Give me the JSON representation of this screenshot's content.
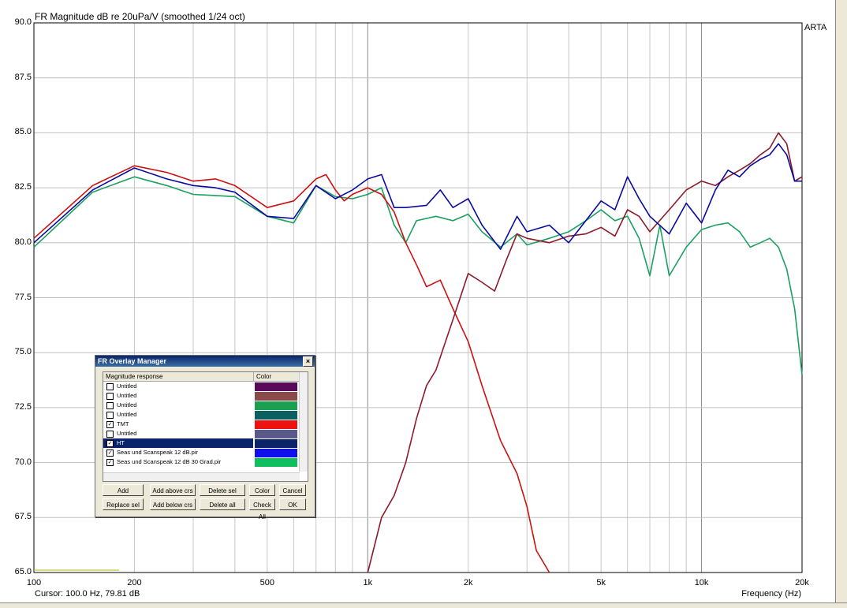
{
  "chart_data": {
    "type": "line",
    "title": "FR Magnitude dB re 20uPa/V (smoothed 1/24 oct)",
    "xlabel": "Frequency (Hz)",
    "x_scale": "log",
    "xlim": [
      100,
      20000
    ],
    "ylim": [
      65,
      90
    ],
    "y_ticks": [
      "90.0",
      "87.5",
      "85.0",
      "82.5",
      "80.0",
      "77.5",
      "75.0",
      "72.5",
      "70.0",
      "67.5",
      "65.0"
    ],
    "x_ticks": [
      {
        "v": 100,
        "label": "100"
      },
      {
        "v": 200,
        "label": "200"
      },
      {
        "v": 500,
        "label": "500"
      },
      {
        "v": 1000,
        "label": "1k"
      },
      {
        "v": 2000,
        "label": "2k"
      },
      {
        "v": 5000,
        "label": "5k"
      },
      {
        "v": 10000,
        "label": "10k"
      },
      {
        "v": 20000,
        "label": "20k"
      }
    ],
    "series": [
      {
        "color": "#1aa060",
        "points": [
          [
            100,
            79.8
          ],
          [
            150,
            82.3
          ],
          [
            200,
            83.0
          ],
          [
            250,
            82.6
          ],
          [
            300,
            82.2
          ],
          [
            400,
            82.1
          ],
          [
            500,
            81.2
          ],
          [
            600,
            80.9
          ],
          [
            700,
            82.6
          ],
          [
            800,
            82.1
          ],
          [
            900,
            82.0
          ],
          [
            1000,
            82.2
          ],
          [
            1100,
            82.5
          ],
          [
            1200,
            80.8
          ],
          [
            1300,
            80.0
          ],
          [
            1400,
            81.0
          ],
          [
            1600,
            81.2
          ],
          [
            1800,
            81.0
          ],
          [
            2000,
            81.3
          ],
          [
            2200,
            80.5
          ],
          [
            2500,
            79.8
          ],
          [
            2800,
            80.4
          ],
          [
            3000,
            79.9
          ],
          [
            3500,
            80.2
          ],
          [
            4000,
            80.5
          ],
          [
            4500,
            81.0
          ],
          [
            5000,
            81.5
          ],
          [
            5500,
            81.0
          ],
          [
            6000,
            81.2
          ],
          [
            6500,
            80.2
          ],
          [
            7000,
            78.5
          ],
          [
            7500,
            80.8
          ],
          [
            8000,
            78.5
          ],
          [
            9000,
            79.8
          ],
          [
            10000,
            80.6
          ],
          [
            11000,
            80.8
          ],
          [
            12000,
            80.9
          ],
          [
            13000,
            80.5
          ],
          [
            14000,
            79.8
          ],
          [
            15000,
            80.0
          ],
          [
            16000,
            80.2
          ],
          [
            17000,
            79.8
          ],
          [
            18000,
            78.8
          ],
          [
            19000,
            77.0
          ],
          [
            20000,
            74.0
          ]
        ]
      },
      {
        "color": "#cc1111",
        "points": [
          [
            100,
            80.2
          ],
          [
            150,
            82.6
          ],
          [
            200,
            83.5
          ],
          [
            250,
            83.2
          ],
          [
            300,
            82.8
          ],
          [
            350,
            82.9
          ],
          [
            400,
            82.6
          ],
          [
            500,
            81.6
          ],
          [
            600,
            81.9
          ],
          [
            700,
            82.9
          ],
          [
            750,
            83.1
          ],
          [
            800,
            82.4
          ],
          [
            850,
            81.9
          ],
          [
            900,
            82.2
          ],
          [
            1000,
            82.5
          ],
          [
            1100,
            82.2
          ],
          [
            1200,
            81.4
          ],
          [
            1300,
            80.0
          ],
          [
            1400,
            79.0
          ],
          [
            1500,
            78.0
          ],
          [
            1650,
            78.3
          ],
          [
            1800,
            77.0
          ],
          [
            2000,
            75.5
          ],
          [
            2200,
            73.5
          ],
          [
            2500,
            71.0
          ],
          [
            2800,
            69.5
          ],
          [
            3000,
            68.0
          ],
          [
            3200,
            66.0
          ],
          [
            3500,
            65.0
          ]
        ]
      },
      {
        "color": "#8b1a2a",
        "points": [
          [
            1000,
            65.0
          ],
          [
            1100,
            67.5
          ],
          [
            1200,
            68.5
          ],
          [
            1300,
            70.0
          ],
          [
            1400,
            72.0
          ],
          [
            1500,
            73.5
          ],
          [
            1600,
            74.2
          ],
          [
            1800,
            76.5
          ],
          [
            2000,
            78.6
          ],
          [
            2200,
            78.2
          ],
          [
            2400,
            77.8
          ],
          [
            2600,
            79.2
          ],
          [
            2800,
            80.4
          ],
          [
            3000,
            80.2
          ],
          [
            3500,
            80.0
          ],
          [
            4000,
            80.3
          ],
          [
            4500,
            80.4
          ],
          [
            5000,
            80.7
          ],
          [
            5500,
            80.3
          ],
          [
            6000,
            81.5
          ],
          [
            6500,
            81.2
          ],
          [
            7000,
            80.5
          ],
          [
            8000,
            81.5
          ],
          [
            9000,
            82.4
          ],
          [
            10000,
            82.8
          ],
          [
            11000,
            82.6
          ],
          [
            12000,
            83.0
          ],
          [
            13000,
            83.3
          ],
          [
            14000,
            83.6
          ],
          [
            15000,
            84.0
          ],
          [
            16000,
            84.3
          ],
          [
            17000,
            85.0
          ],
          [
            18000,
            84.5
          ],
          [
            19000,
            82.8
          ],
          [
            20000,
            83.0
          ]
        ]
      },
      {
        "color": "#0a0aa0",
        "points": [
          [
            100,
            80.0
          ],
          [
            150,
            82.4
          ],
          [
            200,
            83.4
          ],
          [
            250,
            82.9
          ],
          [
            300,
            82.6
          ],
          [
            350,
            82.5
          ],
          [
            400,
            82.3
          ],
          [
            500,
            81.2
          ],
          [
            600,
            81.1
          ],
          [
            700,
            82.6
          ],
          [
            800,
            82.0
          ],
          [
            900,
            82.4
          ],
          [
            1000,
            82.9
          ],
          [
            1100,
            83.1
          ],
          [
            1200,
            81.6
          ],
          [
            1300,
            81.6
          ],
          [
            1500,
            81.7
          ],
          [
            1650,
            82.4
          ],
          [
            1800,
            81.6
          ],
          [
            2000,
            82.0
          ],
          [
            2200,
            80.8
          ],
          [
            2500,
            79.7
          ],
          [
            2800,
            81.2
          ],
          [
            3000,
            80.5
          ],
          [
            3500,
            80.8
          ],
          [
            4000,
            80.0
          ],
          [
            4500,
            81.0
          ],
          [
            5000,
            81.9
          ],
          [
            5500,
            81.5
          ],
          [
            6000,
            83.0
          ],
          [
            6500,
            82.0
          ],
          [
            7000,
            81.2
          ],
          [
            8000,
            80.4
          ],
          [
            9000,
            81.8
          ],
          [
            10000,
            80.9
          ],
          [
            11000,
            82.4
          ],
          [
            12000,
            83.3
          ],
          [
            13000,
            83.0
          ],
          [
            14000,
            83.5
          ],
          [
            15000,
            83.8
          ],
          [
            16000,
            84.0
          ],
          [
            17000,
            84.5
          ],
          [
            18000,
            84.0
          ],
          [
            19000,
            82.8
          ],
          [
            20000,
            82.8
          ]
        ]
      }
    ]
  },
  "right_marker": "ARTA",
  "cursor_text": "Cursor: 100.0 Hz, 79.81 dB",
  "dialog": {
    "title": "FR Overlay Manager",
    "col_name": "Magnitude response",
    "col_color": "Color",
    "rows": [
      {
        "name": "Untitled",
        "checked": false,
        "color": "#5a0a5a",
        "selected": false
      },
      {
        "name": "Untitled",
        "checked": false,
        "color": "#8b4a4a",
        "selected": false
      },
      {
        "name": "Untitled",
        "checked": false,
        "color": "#1aa050",
        "selected": false
      },
      {
        "name": "Untitled",
        "checked": false,
        "color": "#0a6060",
        "selected": false
      },
      {
        "name": "TMT",
        "checked": true,
        "color": "#ee1111",
        "selected": false
      },
      {
        "name": "Untitled",
        "checked": false,
        "color": "#5a5a8a",
        "selected": false
      },
      {
        "name": "HT",
        "checked": true,
        "color": "#0a246a",
        "selected": true
      },
      {
        "name": "Seas und Scanspeak 12 dB.pir",
        "checked": true,
        "color": "#1010ee",
        "selected": false
      },
      {
        "name": "Seas und Scanspeak 12 dB 30 Grad.pir",
        "checked": true,
        "color": "#10c060",
        "selected": false
      }
    ],
    "buttons_row1": [
      "Add",
      "Add above crs",
      "Delete sel",
      "Color",
      "Cancel"
    ],
    "buttons_row2": [
      "Replace sel",
      "Add below crs",
      "Delete all",
      "Check All",
      "OK"
    ]
  }
}
